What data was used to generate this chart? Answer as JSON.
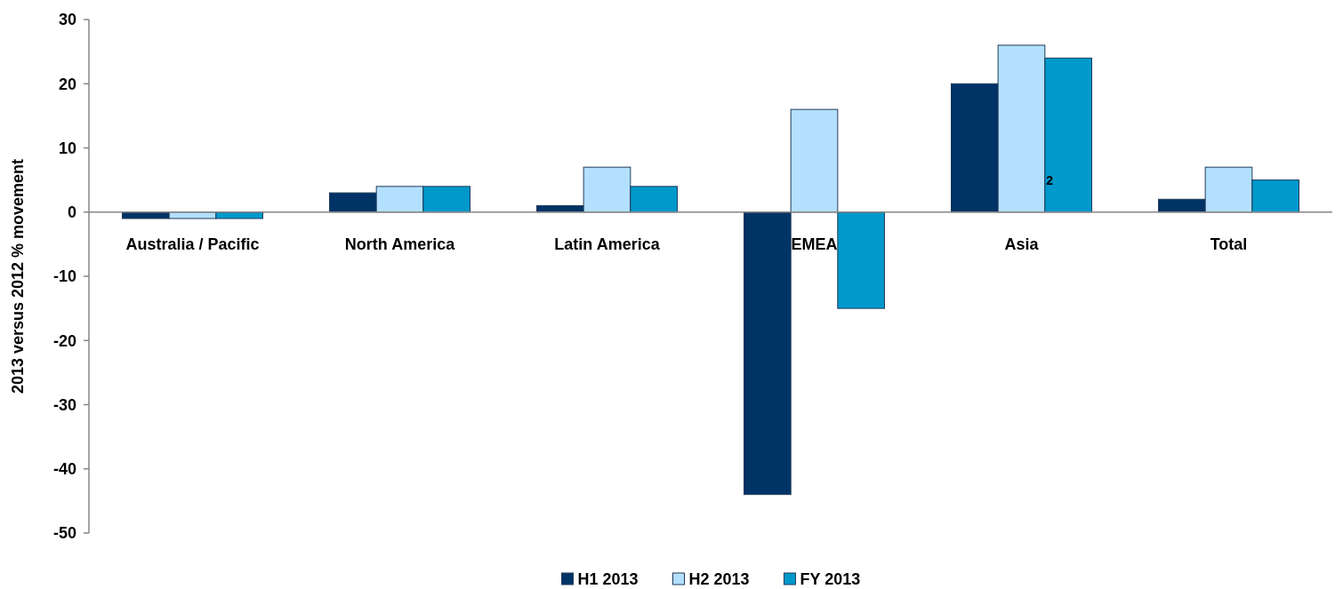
{
  "chart_data": {
    "type": "bar",
    "ylabel": "2013 versus 2012 % movement",
    "categories": [
      "Australia / Pacific",
      "North America",
      "Latin America",
      "EMEA",
      "Asia",
      "Total"
    ],
    "series": [
      {
        "name": "H1 2013",
        "color": "#003366",
        "values": [
          -1,
          3,
          1,
          -44,
          20,
          2
        ]
      },
      {
        "name": "H2 2013",
        "color": "#b3e0ff",
        "values": [
          -1,
          4,
          7,
          16,
          26,
          7
        ]
      },
      {
        "name": "FY 2013",
        "color": "#0099cc",
        "values": [
          -1,
          4,
          4,
          -15,
          24,
          5
        ]
      }
    ],
    "ylim": [
      -50,
      30
    ],
    "yticks": [
      -50,
      -40,
      -30,
      -20,
      -10,
      0,
      10,
      20,
      30
    ],
    "grid": false,
    "legend": "bottom",
    "annotations": [
      "2"
    ]
  }
}
